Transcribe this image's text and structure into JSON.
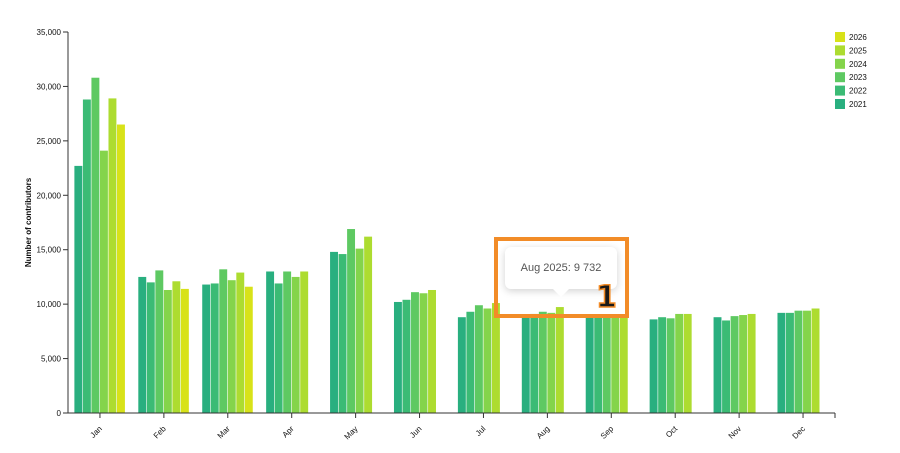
{
  "chart_data": {
    "type": "bar",
    "ylabel": "Number of contributors",
    "xlabel": "",
    "ylim": [
      0,
      35000
    ],
    "yticks": [
      0,
      5000,
      10000,
      15000,
      20000,
      25000,
      30000,
      35000
    ],
    "ytick_labels": [
      "0",
      "5,000",
      "10,000",
      "15,000",
      "20,000",
      "25,000",
      "30,000",
      "35,000"
    ],
    "categories": [
      "Jan",
      "Feb",
      "Mar",
      "Apr",
      "May",
      "Jun",
      "Jul",
      "Aug",
      "Sep",
      "Oct",
      "Nov",
      "Dec"
    ],
    "legend_position": "top-right",
    "grid": false,
    "series": [
      {
        "name": "2021",
        "color": "#29af7f",
        "values": [
          22700,
          12500,
          11800,
          13000,
          14800,
          10200,
          8800,
          9000,
          8800,
          8600,
          8800,
          9200
        ]
      },
      {
        "name": "2022",
        "color": "#3bbb75",
        "values": [
          28800,
          12000,
          11900,
          11900,
          14600,
          10400,
          9300,
          9100,
          8800,
          8800,
          8500,
          9200
        ]
      },
      {
        "name": "2023",
        "color": "#5ec962",
        "values": [
          30800,
          13100,
          13200,
          13000,
          16900,
          11100,
          9900,
          9300,
          8900,
          8700,
          8900,
          9400
        ]
      },
      {
        "name": "2024",
        "color": "#84d44b",
        "values": [
          24100,
          11300,
          12200,
          12500,
          15100,
          11000,
          9600,
          9200,
          8900,
          9100,
          9000,
          9400
        ]
      },
      {
        "name": "2025",
        "color": "#addc30",
        "values": [
          28900,
          12100,
          12900,
          13000,
          16200,
          11300,
          10100,
          9732,
          8900,
          9100,
          9100,
          9600
        ]
      },
      {
        "name": "2026",
        "color": "#d8e219",
        "values": [
          26500,
          11400,
          11600,
          null,
          null,
          null,
          null,
          null,
          null,
          null,
          null,
          null
        ]
      }
    ],
    "legend_order": [
      "2026",
      "2025",
      "2024",
      "2023",
      "2022",
      "2021"
    ]
  },
  "tooltip": {
    "text": "Aug 2025: 9 732"
  },
  "annotation": {
    "label": "1",
    "color": "#f28c28"
  }
}
